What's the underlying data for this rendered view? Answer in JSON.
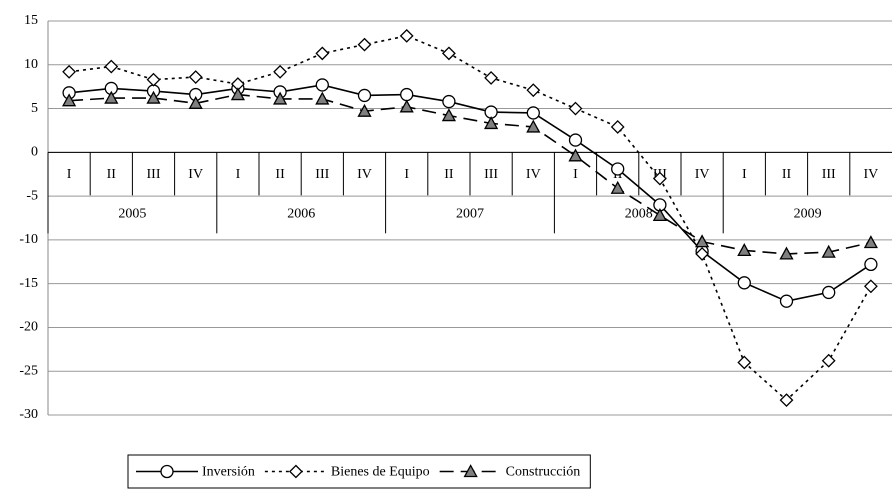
{
  "chart_data": {
    "type": "line",
    "categories": [
      "I",
      "II",
      "III",
      "IV",
      "I",
      "II",
      "III",
      "IV",
      "I",
      "II",
      "III",
      "IV",
      "I",
      "II",
      "III",
      "IV",
      "I",
      "II",
      "III",
      "IV"
    ],
    "years": [
      "2005",
      "2006",
      "2007",
      "2008",
      "2009"
    ],
    "series": [
      {
        "name": "Inversión",
        "color": "#000000",
        "dash": "solid",
        "marker": "circle",
        "marker_fill": "#ffffff",
        "values": [
          6.8,
          7.3,
          7.0,
          6.6,
          7.3,
          6.9,
          7.7,
          6.5,
          6.6,
          5.8,
          4.6,
          4.5,
          1.4,
          -1.9,
          -6.0,
          -11.3,
          -14.9,
          -17.0,
          -16.0,
          -12.8
        ]
      },
      {
        "name": "Bienes de Equipo",
        "color": "#000000",
        "dash": "dotted",
        "marker": "diamond",
        "marker_fill": "#ffffff",
        "values": [
          9.2,
          9.8,
          8.3,
          8.6,
          7.8,
          9.2,
          11.3,
          12.3,
          13.3,
          11.3,
          8.5,
          7.1,
          5.0,
          2.9,
          -3.0,
          -11.6,
          -24.0,
          -28.3,
          -23.8,
          -15.3
        ]
      },
      {
        "name": "Construcción",
        "color": "#000000",
        "dash": "long",
        "marker": "triangle",
        "marker_fill": "#808080",
        "values": [
          5.9,
          6.2,
          6.2,
          5.6,
          6.6,
          6.1,
          6.1,
          4.7,
          5.2,
          4.2,
          3.3,
          2.9,
          -0.4,
          -4.1,
          -7.2,
          -10.2,
          -11.2,
          -11.6,
          -11.4,
          -10.3
        ]
      }
    ],
    "ylim": [
      -30,
      15
    ],
    "yticks": [
      15,
      10,
      5,
      0,
      -5,
      -10,
      -15,
      -20,
      -25,
      -30
    ],
    "grid": true,
    "legend": "bottom"
  }
}
